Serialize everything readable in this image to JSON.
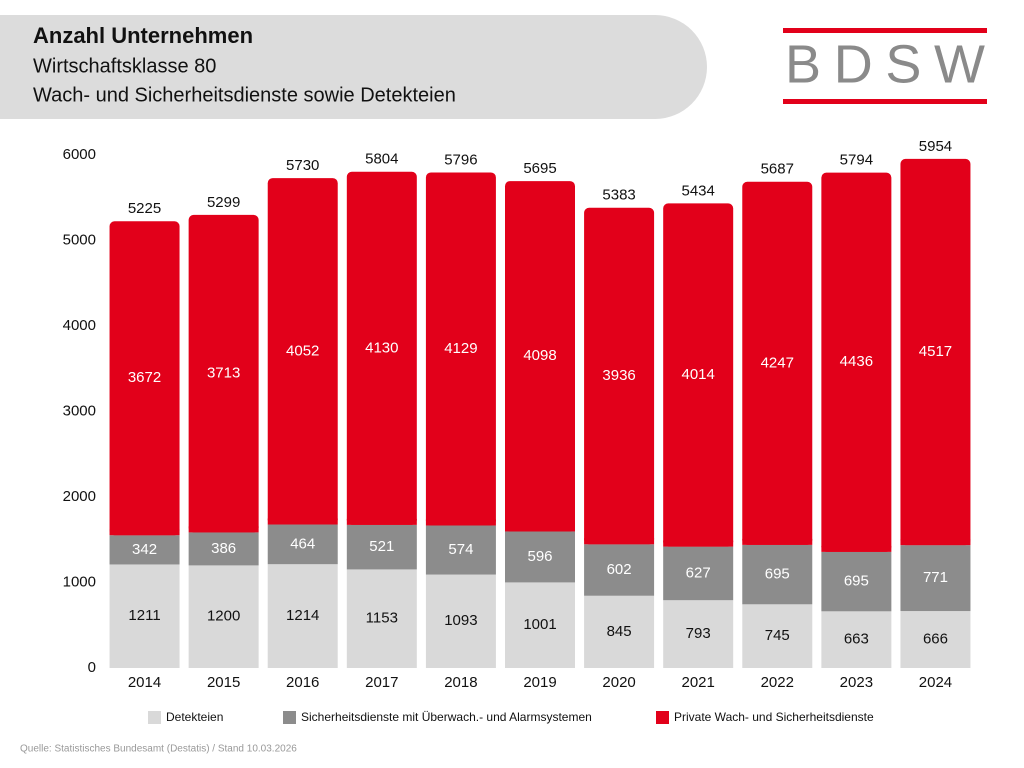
{
  "header": {
    "title": "Anzahl Unternehmen",
    "subtitle": "Wirtschaftsklasse 80",
    "subtitle2": "Wach- und Sicherheitsdienste sowie Detekteien",
    "logo": "BDSW"
  },
  "chart_data": {
    "type": "stacked_bar",
    "categories": [
      "2014",
      "2015",
      "2016",
      "2017",
      "2018",
      "2019",
      "2020",
      "2021",
      "2022",
      "2023",
      "2024"
    ],
    "series": [
      {
        "name": "Detekteien",
        "color": "#d9d9d9",
        "label_color": "#111111",
        "values": [
          1211,
          1200,
          1214,
          1153,
          1093,
          1001,
          845,
          793,
          745,
          663,
          666
        ]
      },
      {
        "name": "Sicherheitsdienste mit Überwach.- und Alarmsystemen",
        "color": "#8c8c8c",
        "label_color": "#ffffff",
        "values": [
          342,
          386,
          464,
          521,
          574,
          596,
          602,
          627,
          695,
          695,
          771
        ]
      },
      {
        "name": "Private Wach- und Sicherheitsdienste",
        "color": "#e2001a",
        "label_color": "#ffffff",
        "values": [
          3672,
          3713,
          4052,
          4130,
          4129,
          4098,
          3936,
          4014,
          4247,
          4436,
          4517
        ]
      }
    ],
    "totals": [
      5225,
      5299,
      5730,
      5804,
      5796,
      5695,
      5383,
      5434,
      5687,
      5794,
      5954
    ],
    "ylim": [
      0,
      6000
    ],
    "yticks": [
      0,
      1000,
      2000,
      3000,
      4000,
      5000,
      6000
    ],
    "grid": false,
    "source": "Quelle: Statistisches Bundesamt (Destatis) / Stand 10.03.2026"
  }
}
